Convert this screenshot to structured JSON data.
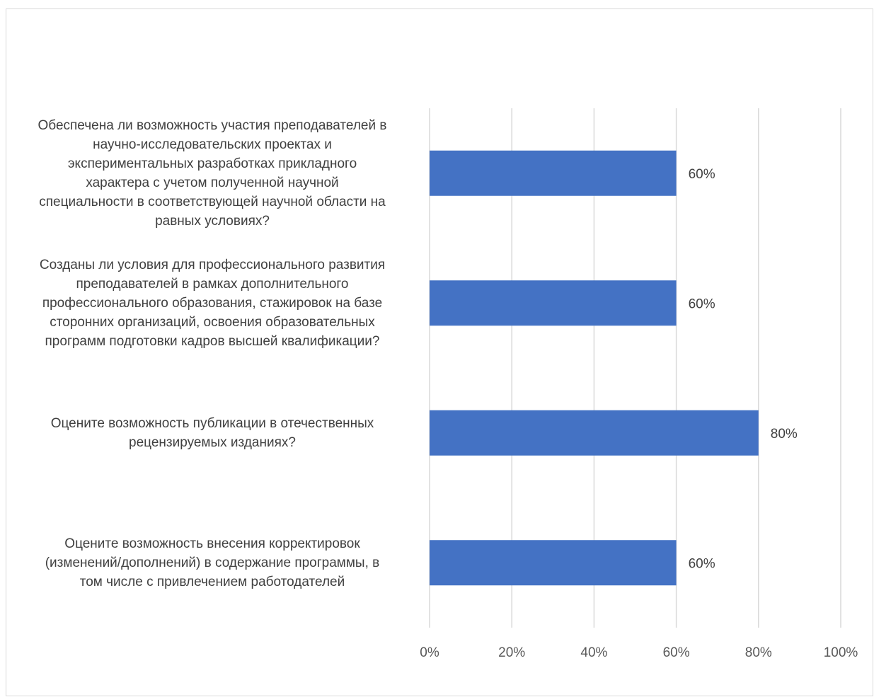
{
  "chart_data": {
    "type": "bar",
    "orientation": "horizontal",
    "categories": [
      "Обеспечена ли возможность участия преподавателей в научно-исследовательских проектах и экспериментальных разработках  прикладного характера с учетом полученной научной специальности в соответствующей научной области на равных условиях?",
      "Созданы ли условия для профессионального развития преподавателей в рамках дополнительного профессионального образования, стажировок на базе сторонних организаций, освоения образовательных программ подготовки кадров высшей квалификации?",
      "Оцените возможность публикации в отечественных рецензируемых изданиях?",
      "Оцените возможность внесения корректировок (изменений/дополнений) в содержание программы, в том числе с привлечением работодателей"
    ],
    "category_lines": [
      [
        "Обеспечена ли возможность участия преподавателей в",
        "научно-исследовательских проектах и",
        "экспериментальных разработках  прикладного",
        "характера с учетом полученной научной",
        "специальности в соответствующей научной области на",
        "равных условиях?"
      ],
      [
        "Созданы ли условия для профессионального развития",
        "преподавателей в рамках дополнительного",
        "профессионального образования, стажировок на базе",
        "сторонних организаций, освоения образовательных",
        "программ подготовки кадров высшей квалификации?"
      ],
      [
        "Оцените возможность публикации в отечественных",
        "рецензируемых изданиях?"
      ],
      [
        "Оцените возможность внесения корректировок",
        "(изменений/дополнений) в содержание программы, в",
        "том числе с привлечением работодателей"
      ]
    ],
    "values": [
      60,
      60,
      80,
      60
    ],
    "data_labels": [
      "60%",
      "60%",
      "80%",
      "60%"
    ],
    "xlim": [
      0,
      100
    ],
    "x_ticks": [
      "0%",
      "20%",
      "40%",
      "60%",
      "80%",
      "100%"
    ],
    "gridlines": true,
    "legend": "none",
    "bar_color": "#4472c4",
    "grid_color": "#d9d9d9",
    "title": "",
    "xlabel": "",
    "ylabel": ""
  }
}
